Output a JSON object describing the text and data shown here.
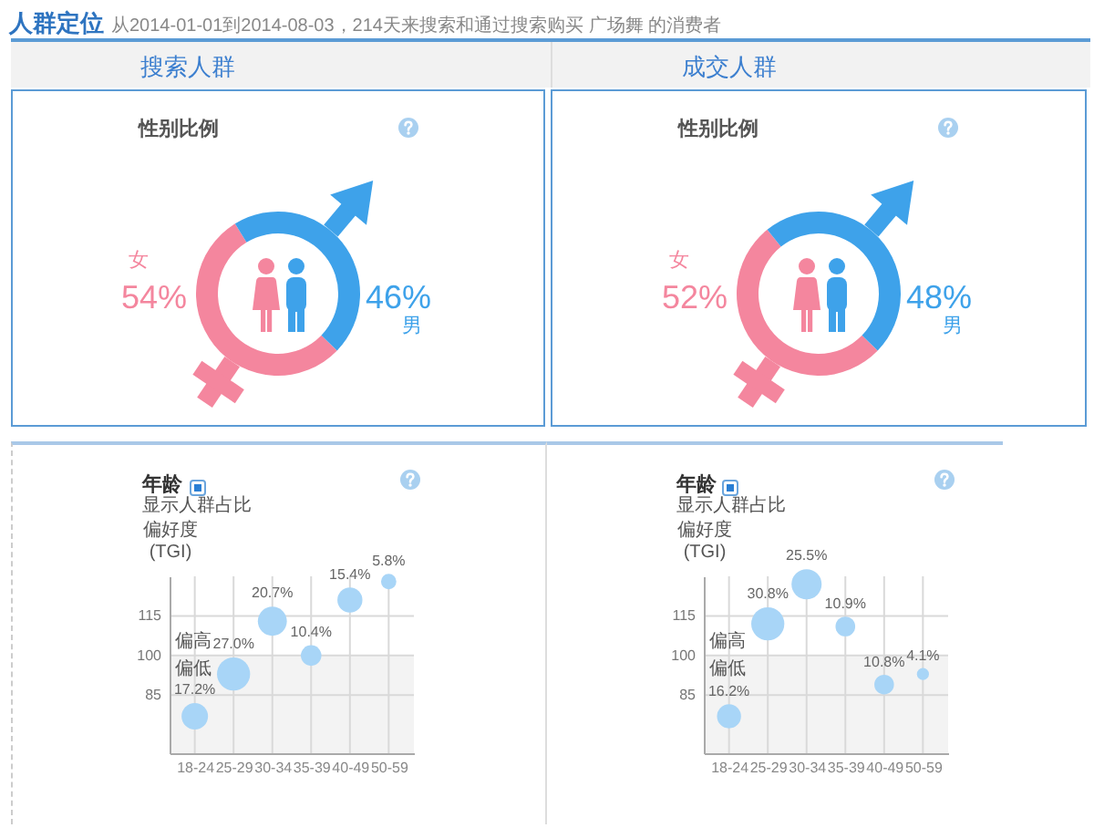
{
  "chart_data": [
    {
      "type": "other",
      "title": "人群定位",
      "subtitle": "从2014-01-01到2014-08-03，214天来搜索和通过搜索购买 广场舞 的消费者",
      "annotations": [
        "搜索人群",
        "成交人群"
      ]
    },
    {
      "type": "donut",
      "title": "性别比例",
      "categories": [
        "女",
        "男"
      ],
      "values": [
        54,
        46
      ],
      "colors": [
        "#f4869e",
        "#3ea2ea"
      ],
      "value_labels": [
        "54%",
        "46%"
      ]
    },
    {
      "type": "donut",
      "title": "性别比例",
      "categories": [
        "女",
        "男"
      ],
      "values": [
        52,
        48
      ],
      "colors": [
        "#f4869e",
        "#3ea2ea"
      ],
      "value_labels": [
        "52%",
        "48%"
      ]
    },
    {
      "type": "bubble",
      "title": "年龄",
      "subtitle": "显示人群占比",
      "ylabel": "偏好度 (TGI)",
      "categories": [
        "18-24",
        "25-29",
        "30-34",
        "35-39",
        "40-49",
        "50-59"
      ],
      "values": [
        77,
        93,
        113,
        100,
        121,
        128
      ],
      "sizes": [
        17.2,
        27.0,
        20.7,
        10.4,
        15.4,
        5.8
      ],
      "value_labels": [
        "17.2%",
        "27.0%",
        "20.7%",
        "10.4%",
        "15.4%",
        "5.8%"
      ],
      "color": "#a8d5f7",
      "ylim": [
        63,
        130
      ],
      "yticks": [
        85,
        100,
        115
      ],
      "grid": true,
      "bands": [
        {
          "axis": "y",
          "from": 63,
          "to": 100,
          "label": "偏低",
          "color": "#f3f3f3"
        }
      ],
      "annotations": [
        {
          "text": "偏高",
          "y": 100
        }
      ]
    },
    {
      "type": "bubble",
      "title": "年龄",
      "subtitle": "显示人群占比",
      "ylabel": "偏好度 (TGI)",
      "categories": [
        "18-24",
        "25-29",
        "30-34",
        "35-39",
        "40-49",
        "50-59"
      ],
      "values": [
        77,
        112,
        127,
        111,
        89,
        93
      ],
      "sizes": [
        16.2,
        30.8,
        25.5,
        10.9,
        10.8,
        4.1
      ],
      "value_labels": [
        "16.2%",
        "30.8%",
        "25.5%",
        "10.9%",
        "10.8%",
        "4.1%"
      ],
      "color": "#a8d5f7",
      "ylim": [
        63,
        130
      ],
      "yticks": [
        85,
        100,
        115
      ],
      "grid": true,
      "bands": [
        {
          "axis": "y",
          "from": 63,
          "to": 100,
          "label": "偏低",
          "color": "#f3f3f3"
        }
      ],
      "annotations": [
        {
          "text": "偏高",
          "y": 100
        }
      ]
    }
  ]
}
